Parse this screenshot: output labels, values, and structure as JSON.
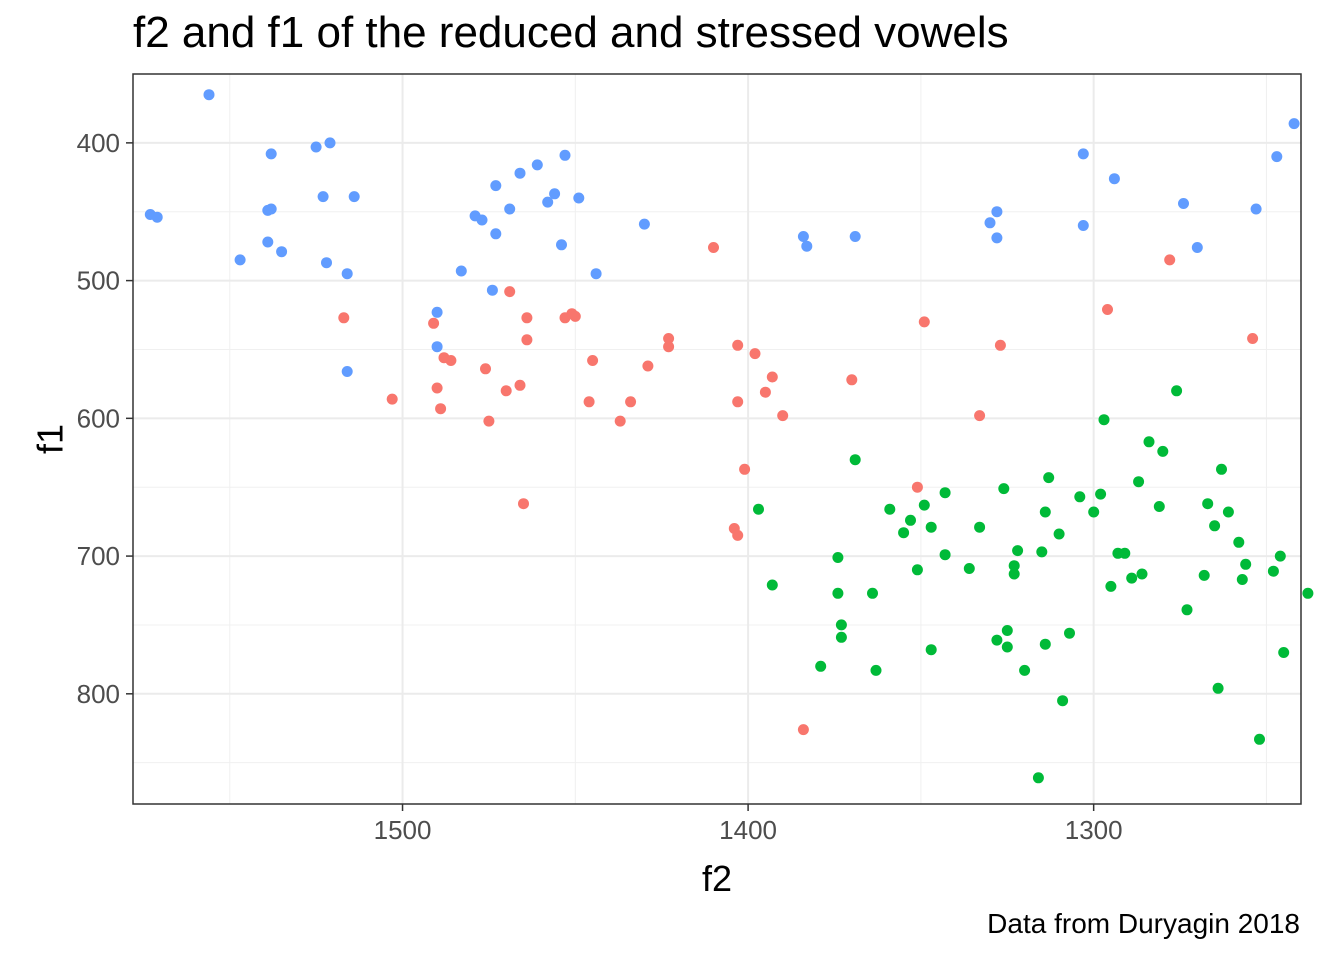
{
  "chart_data": {
    "type": "scatter",
    "title": "f2 and f1 of the reduced and stressed vowels",
    "caption": "Data from Duryagin 2018",
    "xlabel": "f2",
    "ylabel": "f1",
    "x_reversed": true,
    "y_reversed": true,
    "xlim": [
      1578,
      1240
    ],
    "ylim": [
      350,
      880
    ],
    "x_ticks": [
      1500,
      1400,
      1300
    ],
    "y_ticks": [
      400,
      500,
      600,
      700,
      800
    ],
    "grid": true,
    "legend": "none",
    "series": [
      {
        "color": "#619CFF",
        "points": [
          [
            1573,
            452
          ],
          [
            1571,
            454
          ],
          [
            1556,
            365
          ],
          [
            1547,
            485
          ],
          [
            1539,
            472
          ],
          [
            1539,
            449
          ],
          [
            1538,
            448
          ],
          [
            1538,
            408
          ],
          [
            1535,
            479
          ],
          [
            1525,
            403
          ],
          [
            1523,
            439
          ],
          [
            1522,
            487
          ],
          [
            1521,
            400
          ],
          [
            1516,
            495
          ],
          [
            1514,
            439
          ],
          [
            1516,
            566
          ],
          [
            1490,
            523
          ],
          [
            1490,
            548
          ],
          [
            1483,
            493
          ],
          [
            1479,
            453
          ],
          [
            1477,
            456
          ],
          [
            1474,
            507
          ],
          [
            1473,
            431
          ],
          [
            1473,
            466
          ],
          [
            1469,
            448
          ],
          [
            1466,
            422
          ],
          [
            1461,
            416
          ],
          [
            1458,
            443
          ],
          [
            1456,
            437
          ],
          [
            1454,
            474
          ],
          [
            1453,
            409
          ],
          [
            1449,
            440
          ],
          [
            1444,
            495
          ],
          [
            1430,
            459
          ],
          [
            1384,
            468
          ],
          [
            1383,
            475
          ],
          [
            1369,
            468
          ],
          [
            1330,
            458
          ],
          [
            1328,
            450
          ],
          [
            1328,
            469
          ],
          [
            1303,
            460
          ],
          [
            1294,
            426
          ],
          [
            1274,
            444
          ],
          [
            1270,
            476
          ],
          [
            1303,
            408
          ],
          [
            1253,
            448
          ],
          [
            1247,
            410
          ],
          [
            1242,
            386
          ]
        ]
      },
      {
        "color": "#F8766D",
        "points": [
          [
            1503,
            586
          ],
          [
            1517,
            527
          ],
          [
            1491,
            531
          ],
          [
            1490,
            578
          ],
          [
            1489,
            593
          ],
          [
            1488,
            556
          ],
          [
            1486,
            558
          ],
          [
            1476,
            564
          ],
          [
            1475,
            602
          ],
          [
            1470,
            580
          ],
          [
            1469,
            508
          ],
          [
            1466,
            576
          ],
          [
            1465,
            662
          ],
          [
            1464,
            543
          ],
          [
            1464,
            527
          ],
          [
            1453,
            527
          ],
          [
            1451,
            524
          ],
          [
            1450,
            526
          ],
          [
            1446,
            588
          ],
          [
            1445,
            558
          ],
          [
            1437,
            602
          ],
          [
            1434,
            588
          ],
          [
            1429,
            562
          ],
          [
            1423,
            542
          ],
          [
            1423,
            548
          ],
          [
            1410,
            476
          ],
          [
            1403,
            547
          ],
          [
            1403,
            588
          ],
          [
            1404,
            680
          ],
          [
            1403,
            685
          ],
          [
            1401,
            637
          ],
          [
            1398,
            553
          ],
          [
            1395,
            581
          ],
          [
            1393,
            570
          ],
          [
            1390,
            598
          ],
          [
            1384,
            826
          ],
          [
            1370,
            572
          ],
          [
            1351,
            650
          ],
          [
            1349,
            530
          ],
          [
            1333,
            598
          ],
          [
            1327,
            547
          ],
          [
            1296,
            521
          ],
          [
            1278,
            485
          ],
          [
            1254,
            542
          ]
        ]
      },
      {
        "color": "#00BA38",
        "points": [
          [
            1397,
            666
          ],
          [
            1393,
            721
          ],
          [
            1379,
            780
          ],
          [
            1374,
            701
          ],
          [
            1374,
            727
          ],
          [
            1373,
            750
          ],
          [
            1373,
            759
          ],
          [
            1369,
            630
          ],
          [
            1364,
            727
          ],
          [
            1363,
            783
          ],
          [
            1359,
            666
          ],
          [
            1355,
            683
          ],
          [
            1353,
            674
          ],
          [
            1351,
            710
          ],
          [
            1349,
            663
          ],
          [
            1347,
            679
          ],
          [
            1347,
            768
          ],
          [
            1343,
            699
          ],
          [
            1343,
            654
          ],
          [
            1336,
            709
          ],
          [
            1333,
            679
          ],
          [
            1328,
            761
          ],
          [
            1326,
            651
          ],
          [
            1325,
            754
          ],
          [
            1325,
            766
          ],
          [
            1323,
            707
          ],
          [
            1323,
            713
          ],
          [
            1322,
            696
          ],
          [
            1320,
            783
          ],
          [
            1316,
            861
          ],
          [
            1315,
            697
          ],
          [
            1314,
            668
          ],
          [
            1314,
            764
          ],
          [
            1313,
            643
          ],
          [
            1310,
            684
          ],
          [
            1309,
            805
          ],
          [
            1307,
            756
          ],
          [
            1304,
            657
          ],
          [
            1300,
            668
          ],
          [
            1298,
            655
          ],
          [
            1297,
            601
          ],
          [
            1295,
            722
          ],
          [
            1293,
            698
          ],
          [
            1291,
            698
          ],
          [
            1289,
            716
          ],
          [
            1287,
            646
          ],
          [
            1286,
            713
          ],
          [
            1284,
            617
          ],
          [
            1281,
            664
          ],
          [
            1280,
            624
          ],
          [
            1276,
            580
          ],
          [
            1273,
            739
          ],
          [
            1268,
            714
          ],
          [
            1267,
            662
          ],
          [
            1265,
            678
          ],
          [
            1264,
            796
          ],
          [
            1263,
            637
          ],
          [
            1261,
            668
          ],
          [
            1258,
            690
          ],
          [
            1257,
            717
          ],
          [
            1256,
            706
          ],
          [
            1252,
            833
          ],
          [
            1248,
            711
          ],
          [
            1246,
            700
          ],
          [
            1245,
            770
          ],
          [
            1238,
            727
          ]
        ]
      }
    ]
  }
}
